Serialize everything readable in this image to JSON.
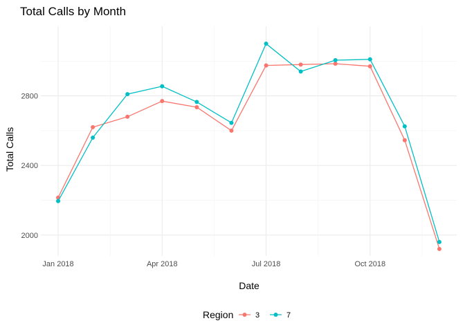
{
  "chart_data": {
    "type": "line",
    "title": "Total Calls by Month",
    "xlabel": "Date",
    "ylabel": "Total Calls",
    "x": [
      "2018-01",
      "2018-02",
      "2018-03",
      "2018-04",
      "2018-05",
      "2018-06",
      "2018-07",
      "2018-08",
      "2018-09",
      "2018-10",
      "2018-11",
      "2018-12"
    ],
    "x_ticks": [
      {
        "x": "2018-01",
        "label": "Jan 2018"
      },
      {
        "x": "2018-04",
        "label": "Apr 2018"
      },
      {
        "x": "2018-07",
        "label": "Jul 2018"
      },
      {
        "x": "2018-10",
        "label": "Oct 2018"
      }
    ],
    "y_ticks": [
      2000,
      2400,
      2800
    ],
    "ylim": [
      1880,
      3200
    ],
    "grid": true,
    "legend": {
      "title": "Region",
      "position": "bottom"
    },
    "series": [
      {
        "name": "3",
        "color": "#F8766D",
        "values": [
          2215,
          2620,
          2680,
          2770,
          2735,
          2600,
          2975,
          2980,
          2985,
          2970,
          2545,
          1920
        ]
      },
      {
        "name": "7",
        "color": "#00BFC4",
        "values": [
          2195,
          2560,
          2810,
          2855,
          2765,
          2645,
          3100,
          2940,
          3005,
          3010,
          2625,
          1960
        ]
      }
    ]
  }
}
